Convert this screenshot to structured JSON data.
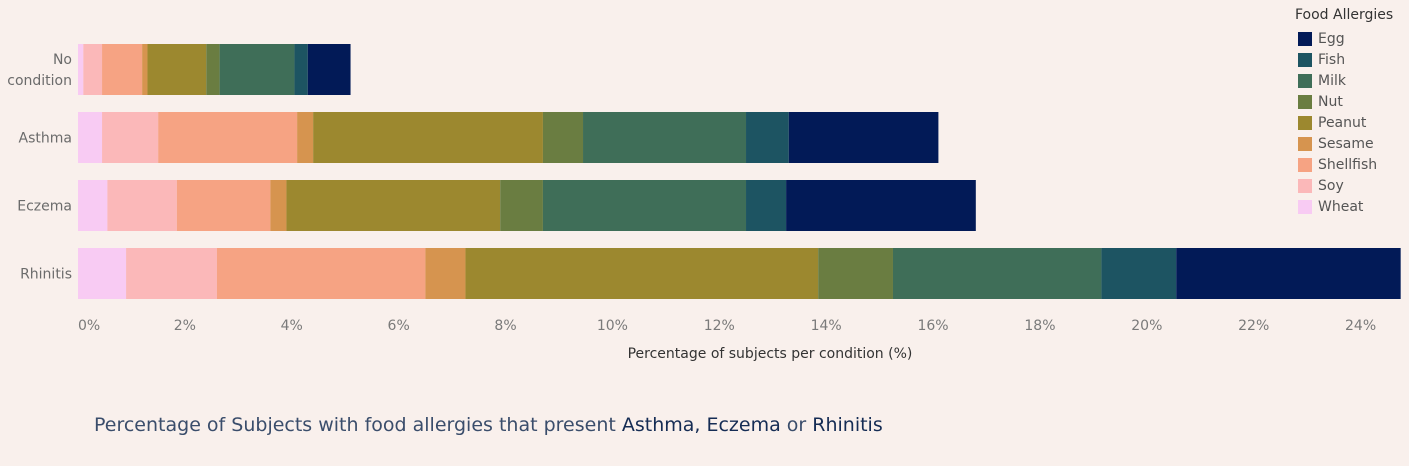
{
  "chart_data": {
    "type": "bar",
    "orientation": "horizontal",
    "stacked": true,
    "categories": [
      [
        "No",
        "condition"
      ],
      [
        "Asthma"
      ],
      [
        "Eczema"
      ],
      [
        "Rhinitis"
      ]
    ],
    "series": [
      {
        "name": "Wheat",
        "color": "#f8cbf3",
        "values": [
          0.1,
          0.45,
          0.55,
          0.9
        ]
      },
      {
        "name": "Soy",
        "color": "#fbb8b9",
        "values": [
          0.35,
          1.05,
          1.3,
          1.7
        ]
      },
      {
        "name": "Shellfish",
        "color": "#f6a383",
        "values": [
          0.75,
          2.6,
          1.75,
          3.9
        ]
      },
      {
        "name": "Sesame",
        "color": "#d6944f",
        "values": [
          0.1,
          0.3,
          0.3,
          0.75
        ]
      },
      {
        "name": "Peanut",
        "color": "#9c882f",
        "values": [
          1.1,
          4.3,
          4.0,
          6.6
        ]
      },
      {
        "name": "Nut",
        "color": "#6a7d41",
        "values": [
          0.25,
          0.75,
          0.8,
          1.4
        ]
      },
      {
        "name": "Milk",
        "color": "#3f6e58",
        "values": [
          1.4,
          3.05,
          3.8,
          3.9
        ]
      },
      {
        "name": "Fish",
        "color": "#1d5462",
        "values": [
          0.25,
          0.8,
          0.75,
          1.4
        ]
      },
      {
        "name": "Egg",
        "color": "#021a57",
        "values": [
          0.8,
          2.8,
          3.55,
          4.2
        ]
      }
    ],
    "xlim": [
      0,
      24.7
    ],
    "xticks": [
      0,
      2,
      4,
      6,
      8,
      10,
      12,
      14,
      16,
      18,
      20,
      22,
      24
    ],
    "xtick_suffix": "%",
    "xlabel": "Percentage of subjects per condition (%)",
    "legend_title": "Food Allergies",
    "legend_order": [
      "Egg",
      "Fish",
      "Milk",
      "Nut",
      "Peanut",
      "Sesame",
      "Shellfish",
      "Soy",
      "Wheat"
    ],
    "legend_position": "top-right",
    "grid": false
  },
  "caption": {
    "prefix": "Percentage of Subjects with food allergies that present ",
    "highlight_1": "Asthma, Eczema",
    "middle": " or ",
    "highlight_2": "Rhinitis"
  }
}
